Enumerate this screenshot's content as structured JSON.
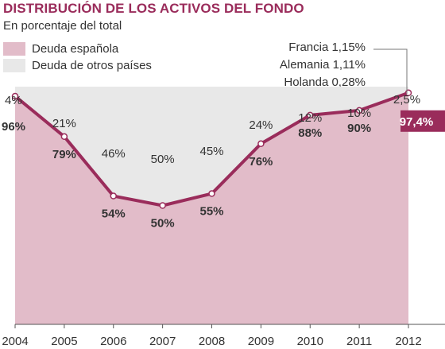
{
  "chart_data": {
    "type": "area",
    "title": "DISTRIBUCIÓN DE LOS ACTIVOS DEL FONDO",
    "subtitle": "En porcentaje del total",
    "ylim": [
      0,
      100
    ],
    "x": [
      "2004",
      "2005",
      "2006",
      "2007",
      "2008",
      "2009",
      "2010",
      "2011",
      "2012"
    ],
    "series": [
      {
        "name": "Deuda española",
        "values": [
          96,
          79,
          54,
          50,
          55,
          76,
          88,
          90,
          97.4
        ],
        "labels": [
          "96%",
          "79%",
          "54%",
          "50%",
          "55%",
          "76%",
          "88%",
          "90%",
          "97,4%"
        ],
        "color": "#e2bcc9"
      },
      {
        "name": "Deuda de otros países",
        "values": [
          4,
          21,
          46,
          50,
          45,
          24,
          12,
          10,
          2.5
        ],
        "labels": [
          "4%",
          "21%",
          "46%",
          "50%",
          "45%",
          "24%",
          "12%",
          "10%",
          "2,5%"
        ],
        "color": "#e8e8e8"
      }
    ],
    "line_color": "#9a2c5b",
    "annotation": [
      "Francia 1,15%",
      "Alemania 1,11%",
      "Holanda 0,28%"
    ]
  }
}
